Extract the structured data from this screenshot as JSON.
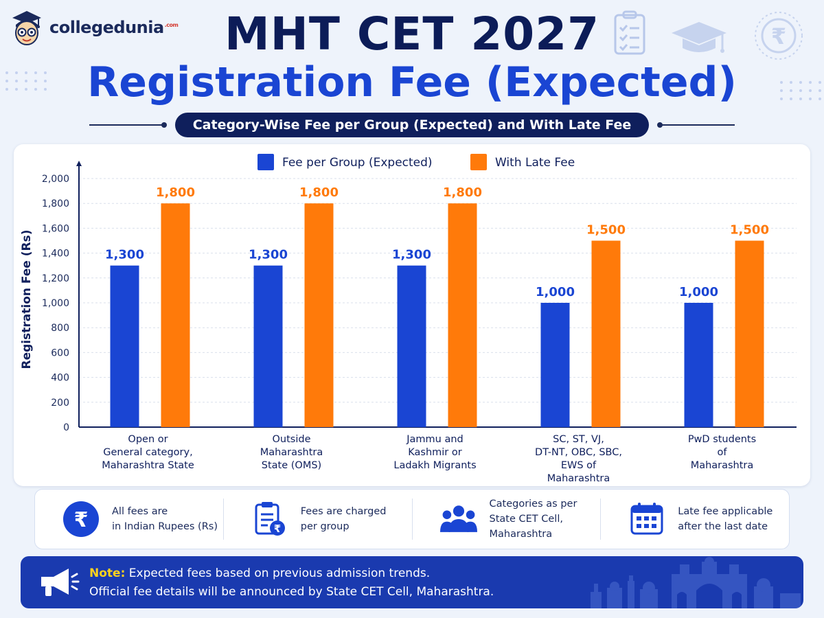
{
  "brand": {
    "name": "collegedunia",
    "suffix": ".com"
  },
  "header": {
    "title": "MHT CET 2027",
    "subtitle_main": "Registration Fee (Expected)",
    "subtitle_pill": "Category-Wise Fee per Group (Expected) and With Late Fee"
  },
  "header_icons": [
    "checklist-icon",
    "graduation-cap-icon",
    "rupee-icon"
  ],
  "colors": {
    "navy": "#0c1c58",
    "blue": "#1a45d3",
    "orange": "#ff7a0a",
    "note_yellow": "#ffd21e",
    "note_bg": "#1a3aaf"
  },
  "chart_data": {
    "type": "bar",
    "ylabel": "Registration Fee (Rs)",
    "xlabel": "",
    "ylim": [
      0,
      2000
    ],
    "yticks": [
      "0",
      "200",
      "400",
      "600",
      "800",
      "1,000",
      "1,200",
      "1,400",
      "1,600",
      "1,800",
      "2,000"
    ],
    "yticks_values": [
      0,
      200,
      400,
      600,
      800,
      1000,
      1200,
      1400,
      1600,
      1800,
      2000
    ],
    "grid": true,
    "legend_position": "top-center",
    "categories": [
      [
        "Open or",
        "General category,",
        "Maharashtra State"
      ],
      [
        "Outside",
        "Maharashtra",
        "State (OMS)"
      ],
      [
        "Jammu and",
        "Kashmir or",
        "Ladakh Migrants"
      ],
      [
        "SC, ST, VJ,",
        "DT-NT, OBC, SBC,",
        "EWS of",
        "Maharashtra"
      ],
      [
        "PwD students",
        "of",
        "Maharashtra"
      ]
    ],
    "series": [
      {
        "name": "Fee per Group (Expected)",
        "color": "#1a45d3",
        "values": [
          1300,
          1300,
          1300,
          1000,
          1000
        ],
        "labels": [
          "1,300",
          "1,300",
          "1,300",
          "1,000",
          "1,000"
        ]
      },
      {
        "name": "With Late Fee",
        "color": "#ff7a0a",
        "values": [
          1800,
          1800,
          1800,
          1500,
          1500
        ],
        "labels": [
          "1,800",
          "1,800",
          "1,800",
          "1,500",
          "1,500"
        ]
      }
    ]
  },
  "info": [
    {
      "icon": "rupee-circle-icon",
      "text_1": "All fees are",
      "text_2": "in Indian Rupees (Rs)"
    },
    {
      "icon": "document-rupee-icon",
      "text_1": "Fees are charged",
      "text_2": "per group"
    },
    {
      "icon": "people-group-icon",
      "text_1": "Categories as per",
      "text_2": "State CET Cell,",
      "text_3": "Maharashtra"
    },
    {
      "icon": "calendar-icon",
      "text_1": "Late fee applicable",
      "text_2": "after the last date"
    }
  ],
  "note": {
    "label": "Note:",
    "line_1": " Expected fees based on previous admission trends.",
    "line_2": "Official fee details will be announced by State CET Cell, Maharashtra."
  }
}
